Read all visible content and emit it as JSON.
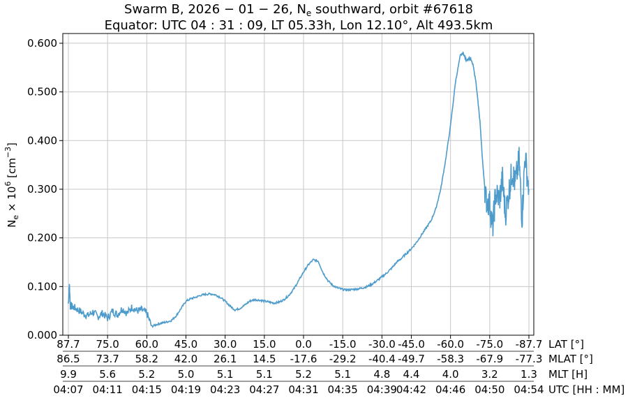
{
  "chart_data": {
    "type": "line",
    "title_line1": "Swarm B, 2026 − 01 − 26, N",
    "title_line1_sub": "e",
    "title_line1_rest": " southward, orbit #67618",
    "title_line2": "Equator: UTC 04 : 31 : 09, LT 05.33h, Lon 12.10°, Alt 493.5km",
    "ylabel_main": "N",
    "ylabel_sub": "e",
    "ylabel_mid": " × 10",
    "ylabel_sup": "6",
    "ylabel_unit": " [cm",
    "ylabel_unit_sup": "−3",
    "ylabel_close": "]",
    "ylim": [
      0,
      0.62
    ],
    "y_ticks": [
      "0.000",
      "0.100",
      "0.200",
      "0.300",
      "0.400",
      "0.500",
      "0.600"
    ],
    "y_tick_values": [
      0,
      0.1,
      0.2,
      0.3,
      0.4,
      0.5,
      0.6
    ],
    "grid": true,
    "line_color": "#4c9bcb",
    "x_rows": [
      {
        "name": "LAT [°]",
        "labels": [
          "87.7",
          "75.0",
          "60.0",
          "45.0",
          "30.0",
          "15.0",
          "0.0",
          "-15.0",
          "-30.0",
          "-45.0",
          "-60.0",
          "-75.0",
          "-87.7"
        ]
      },
      {
        "name": "MLAT [°]",
        "labels": [
          "86.5",
          "73.7",
          "58.2",
          "42.0",
          "26.1",
          "14.5",
          "-17.6",
          "-29.2",
          "-40.4",
          "-49.7",
          "-58.3",
          "-67.9",
          "-77.3"
        ]
      },
      {
        "name": "MLT [H]",
        "labels": [
          "9.9",
          "5.6",
          "5.2",
          "5.0",
          "5.1",
          "5.1",
          "5.2",
          "5.1",
          "4.8",
          "4.4",
          "4.0",
          "3.2",
          "1.3"
        ]
      },
      {
        "name": "UTC [HH : MM]",
        "labels": [
          "04:07",
          "04:11",
          "04:15",
          "04:19",
          "04:23",
          "04:27",
          "04:31",
          "04:35",
          "04:39",
          "04:42",
          "04:46",
          "04:50",
          "04:54"
        ]
      }
    ],
    "x_minutes_since_0407": [
      0,
      4,
      8,
      12,
      16,
      20,
      24,
      28,
      32,
      35,
      39,
      43,
      47
    ],
    "series": [
      {
        "x_minutes": [
          0,
          0.1,
          0.2,
          0.5,
          1.0,
          1.5,
          2.0,
          2.5,
          3.0,
          3.5,
          4.0,
          4.5,
          5.0,
          5.5,
          6.0,
          6.5,
          7.0,
          7.5,
          8.0,
          8.5,
          9.0,
          9.5,
          10.0,
          10.5,
          11.0,
          11.5,
          12.0,
          12.5,
          13.0,
          13.5,
          14.0,
          14.5,
          15.0,
          15.5,
          16.0,
          16.5,
          17.0,
          17.5,
          18.0,
          18.5,
          19.0,
          19.5,
          20.0,
          20.5,
          21.0,
          21.5,
          22.0,
          22.5,
          23.0,
          23.5,
          24.0,
          24.5,
          25.0,
          25.5,
          26.0,
          26.5,
          27.0,
          27.5,
          28.0,
          28.5,
          29.0,
          29.5,
          30.0,
          30.5,
          31.0,
          31.5,
          32.0,
          32.5,
          33.0,
          33.5,
          34.0,
          34.5,
          35.0,
          35.5,
          36.0,
          36.5,
          37.0,
          37.5,
          38.0,
          38.5,
          39.0,
          39.5,
          40.0,
          40.3,
          40.6,
          41.0,
          41.3,
          41.6,
          42.0,
          42.3,
          42.6,
          43.0,
          43.3,
          43.6,
          44.0,
          44.3,
          44.6,
          45.0,
          45.3,
          45.6,
          46.0,
          46.3,
          46.6,
          47.0
        ],
        "values": [
          0.065,
          0.105,
          0.06,
          0.058,
          0.052,
          0.045,
          0.04,
          0.048,
          0.038,
          0.045,
          0.035,
          0.05,
          0.042,
          0.055,
          0.045,
          0.058,
          0.05,
          0.052,
          0.045,
          0.018,
          0.022,
          0.025,
          0.027,
          0.03,
          0.04,
          0.055,
          0.07,
          0.075,
          0.078,
          0.082,
          0.084,
          0.085,
          0.083,
          0.078,
          0.07,
          0.06,
          0.052,
          0.055,
          0.062,
          0.07,
          0.073,
          0.072,
          0.07,
          0.068,
          0.066,
          0.068,
          0.073,
          0.082,
          0.095,
          0.112,
          0.13,
          0.145,
          0.155,
          0.152,
          0.128,
          0.112,
          0.102,
          0.097,
          0.094,
          0.093,
          0.094,
          0.095,
          0.097,
          0.1,
          0.105,
          0.112,
          0.12,
          0.128,
          0.138,
          0.15,
          0.158,
          0.168,
          0.178,
          0.19,
          0.205,
          0.22,
          0.235,
          0.26,
          0.3,
          0.36,
          0.43,
          0.52,
          0.575,
          0.58,
          0.565,
          0.57,
          0.555,
          0.52,
          0.44,
          0.35,
          0.28,
          0.27,
          0.22,
          0.29,
          0.28,
          0.32,
          0.25,
          0.3,
          0.34,
          0.31,
          0.36,
          0.24,
          0.37,
          0.3
        ]
      }
    ]
  }
}
